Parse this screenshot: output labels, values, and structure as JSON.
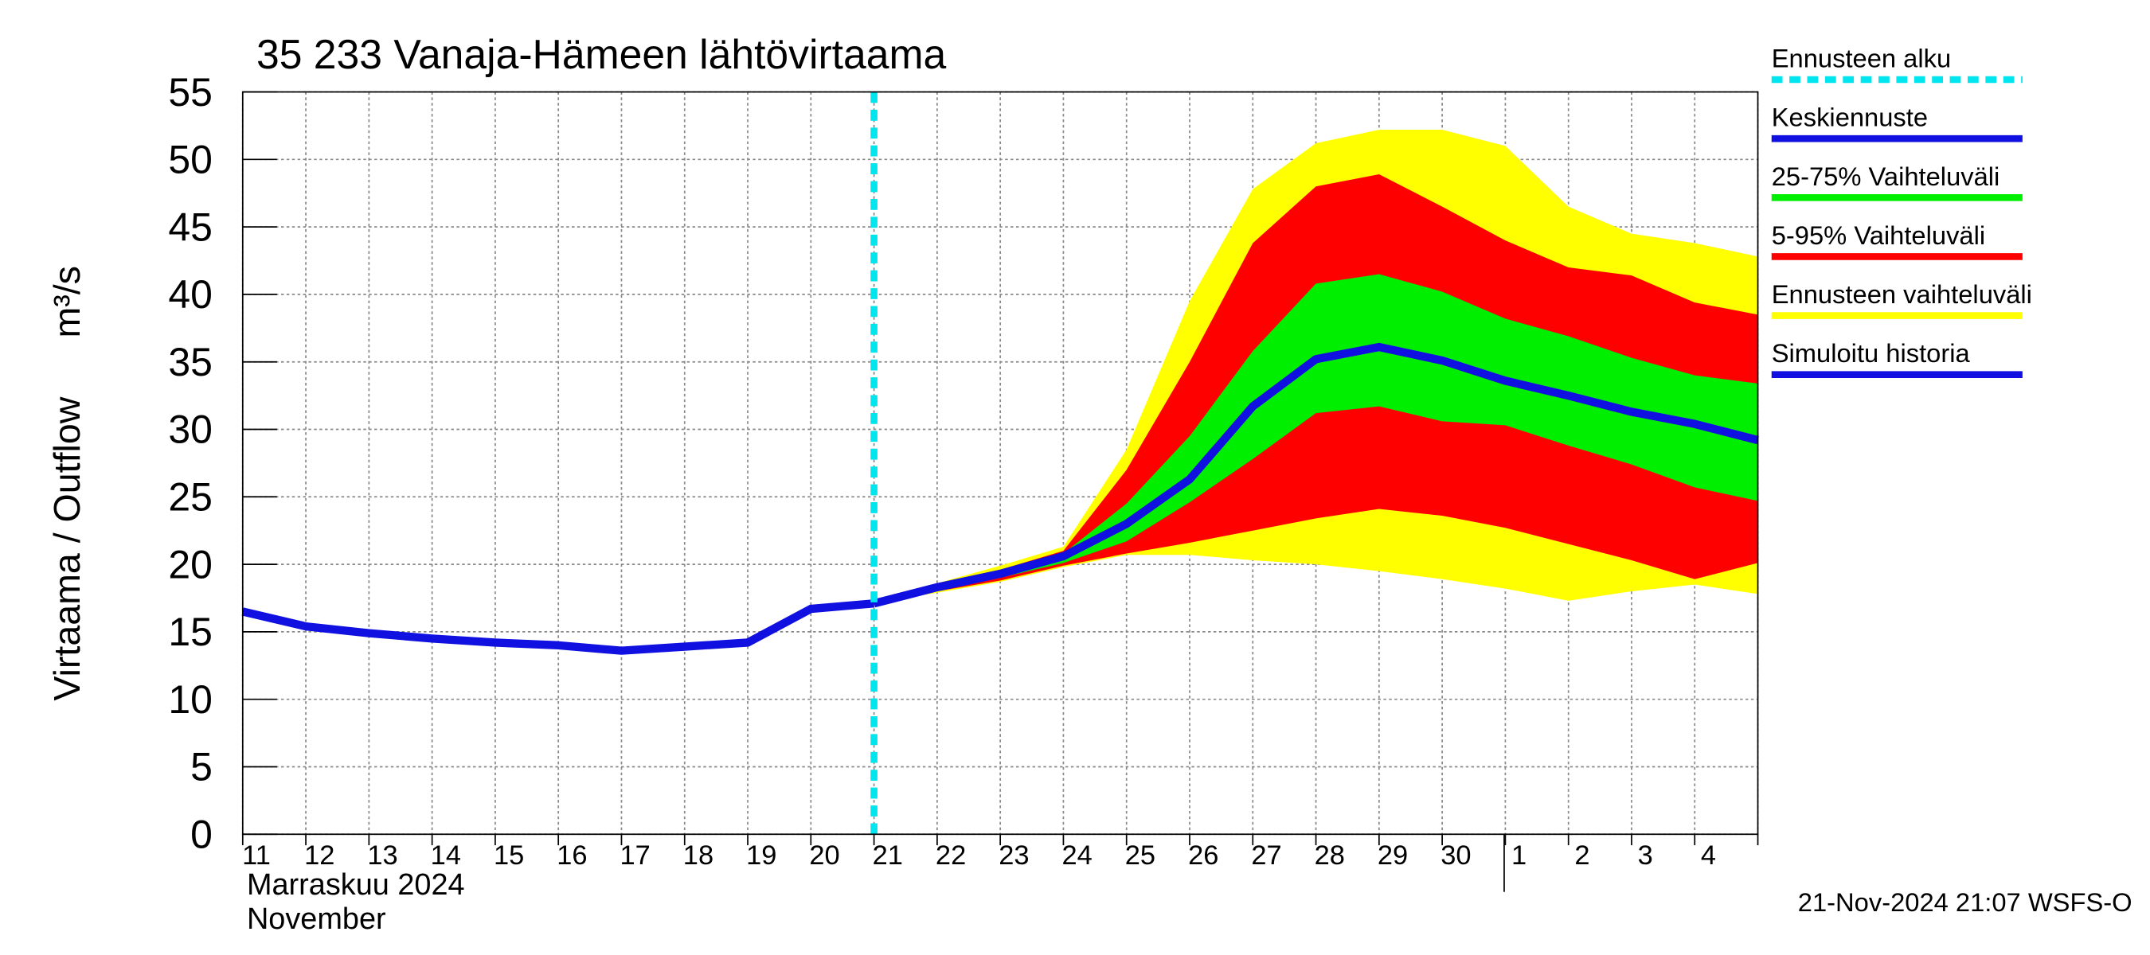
{
  "chart_data": {
    "type": "line",
    "title": "35 233 Vanaja-Hämeen lähtövirtaama",
    "y_label": "Virtaama / Outflow",
    "y_unit": "m³/s",
    "x_label_fi": "Marraskuu 2024",
    "x_label_en": "November",
    "footer": "21-Nov-2024 21:07 WSFS-O",
    "categories": [
      "11",
      "12",
      "13",
      "14",
      "15",
      "16",
      "17",
      "18",
      "19",
      "20",
      "21",
      "22",
      "23",
      "24",
      "25",
      "26",
      "27",
      "28",
      "29",
      "30",
      "1",
      "2",
      "3",
      "4",
      null
    ],
    "ylim": [
      0,
      55
    ],
    "yticks": [
      0,
      5,
      10,
      15,
      20,
      25,
      30,
      35,
      40,
      45,
      50,
      55
    ],
    "grid": true,
    "forecast_start": {
      "name": "Ennusteen alku",
      "color": "#00e5ee",
      "at": "21"
    },
    "series": [
      {
        "name": "Keskiennuste",
        "type": "line",
        "color": "#1010e0",
        "values": [
          null,
          null,
          null,
          null,
          null,
          null,
          null,
          null,
          null,
          null,
          17.1,
          18.3,
          19.3,
          20.6,
          23.0,
          26.3,
          31.7,
          35.2,
          36.1,
          35.1,
          33.6,
          32.5,
          31.3,
          30.4,
          29.2
        ]
      },
      {
        "name": "25-75% Vaihteluväli",
        "type": "band",
        "color": "#00ee00",
        "values": [
          null,
          null,
          null,
          null,
          null,
          null,
          null,
          null,
          null,
          null,
          17.1,
          18.3,
          19.4,
          20.8,
          24.5,
          29.5,
          35.8,
          40.8,
          41.5,
          40.2,
          38.2,
          36.9,
          35.3,
          34.0,
          33.4
        ],
        "lower": [
          null,
          null,
          null,
          null,
          null,
          null,
          null,
          null,
          null,
          null,
          17.1,
          18.1,
          19.0,
          20.1,
          21.7,
          24.6,
          27.8,
          31.2,
          31.7,
          30.6,
          30.3,
          28.8,
          27.4,
          25.7,
          24.7
        ]
      },
      {
        "name": "5-95% Vaihteluväli",
        "type": "band",
        "color": "#ff0000",
        "values": [
          null,
          null,
          null,
          null,
          null,
          null,
          null,
          null,
          null,
          null,
          17.1,
          18.4,
          19.6,
          21.0,
          27.0,
          35.0,
          43.8,
          48.0,
          48.9,
          46.5,
          44.0,
          42.0,
          41.4,
          39.4,
          38.5
        ],
        "lower": [
          null,
          null,
          null,
          null,
          null,
          null,
          null,
          null,
          null,
          null,
          17.1,
          18.0,
          18.8,
          19.9,
          20.8,
          21.6,
          22.5,
          23.4,
          24.1,
          23.6,
          22.7,
          21.5,
          20.3,
          18.9,
          20.1
        ]
      },
      {
        "name": "Ennusteen vaihteluväli",
        "type": "band",
        "color": "#ffff00",
        "values": [
          null,
          null,
          null,
          null,
          null,
          null,
          null,
          null,
          null,
          null,
          17.1,
          18.6,
          19.9,
          21.3,
          28.5,
          39.5,
          47.8,
          51.2,
          52.2,
          52.2,
          51.0,
          46.5,
          44.5,
          43.8,
          42.8
        ],
        "lower": [
          null,
          null,
          null,
          null,
          null,
          null,
          null,
          null,
          null,
          null,
          17.1,
          17.9,
          18.7,
          19.8,
          20.7,
          20.7,
          20.3,
          20.0,
          19.5,
          18.9,
          18.2,
          17.3,
          18.0,
          18.5,
          17.8
        ]
      },
      {
        "name": "Simuloitu historia",
        "type": "line",
        "color": "#1010e0",
        "values": [
          16.5,
          15.4,
          14.9,
          14.5,
          14.2,
          14.0,
          13.6,
          13.9,
          14.2,
          16.7,
          17.1,
          null,
          null,
          null,
          null,
          null,
          null,
          null,
          null,
          null,
          null,
          null,
          null,
          null,
          null
        ]
      }
    ]
  }
}
